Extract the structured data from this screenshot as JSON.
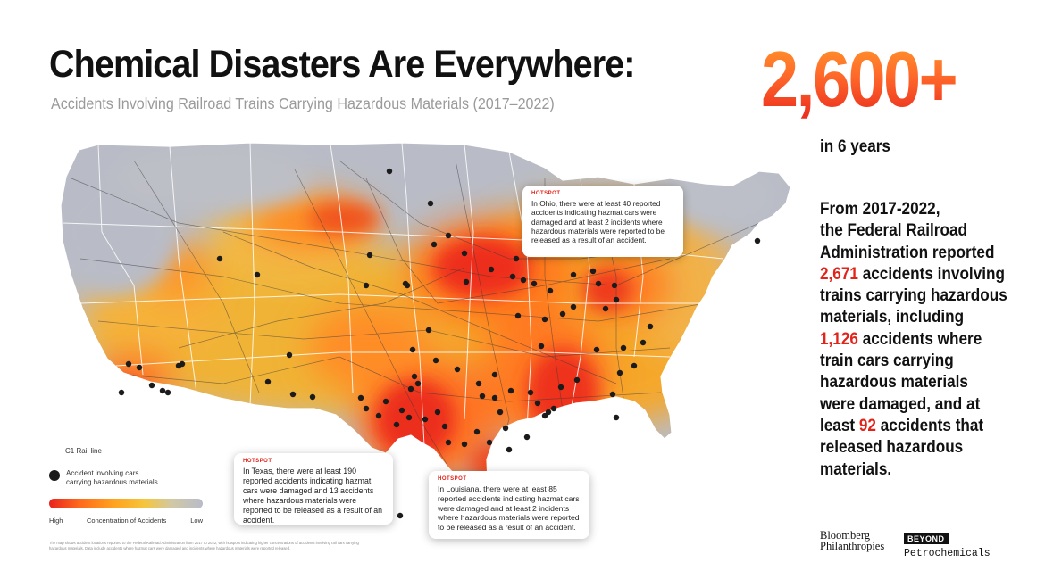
{
  "header": {
    "title": "Chemical Disasters Are Everywhere:",
    "subtitle": "Accidents Involving Railroad Trains Carrying Hazardous Materials (2017–2022)"
  },
  "stat": {
    "value": "2,600+",
    "caption": "in 6 years"
  },
  "summary": {
    "line1": "From 2017-2022,",
    "line2": "the Federal Railroad",
    "line3": "Administration reported",
    "accidents_total": "2,671",
    "line4_rest": " accidents involving",
    "line5": "trains carrying hazardous",
    "line6": "materials, including",
    "accidents_damaged": "1,126",
    "line7_rest": " accidents where",
    "line8": "train cars carrying",
    "line9": "hazardous materials",
    "line10": "were damaged, and at",
    "line11_pre": "least ",
    "accidents_released": "92",
    "line11_rest": " accidents that",
    "line12": "released hazardous",
    "line13": "materials."
  },
  "callouts": {
    "ohio": {
      "tag": "HOTSPOT",
      "text": "In Ohio, there were at least 40 reported accidents indicating hazmat cars were damaged and at least 2 incidents where hazardous materials were reported to be released as a result of an accident."
    },
    "texas": {
      "tag": "HOTSPOT",
      "text": "In Texas, there were at least 190 reported accidents indicating hazmat cars were damaged and 13 accidents where hazardous materials were reported to be released as a result of an accident."
    },
    "louisiana": {
      "tag": "HOTSPOT",
      "text": "In Louisiana, there were at least 85 reported accidents indicating hazmat cars were damaged and at least 2 incidents where hazardous materials were reported to be released as a result of an accident."
    }
  },
  "legend": {
    "rail_line": "C1 Rail line",
    "accident_line1": "Accident involving cars",
    "accident_line2": "carrying hazardous materials",
    "high": "High",
    "concentration": "Concentration of Accidents",
    "low": "Low"
  },
  "footnote": "The map shows accident locations reported to the Federal Railroad Administration from 2017 to 2022, with hotspots indicating higher concentrations of accidents involving rail cars carrying hazardous materials. Data include accidents where hazmat cars were damaged and incidents where hazardous materials were reported released.",
  "logos": {
    "bloomberg_line1": "Bloomberg",
    "bloomberg_line2": "Philanthropies",
    "beyond": "BEYOND",
    "petrochemicals": "Petrochemicals"
  },
  "colors": {
    "accent_red": "#e2231a",
    "heat_high": "#e8231d",
    "heat_mid": "#ffa21f",
    "heat_low": "#b8bcc8",
    "dot": "#1b1b1b"
  }
}
